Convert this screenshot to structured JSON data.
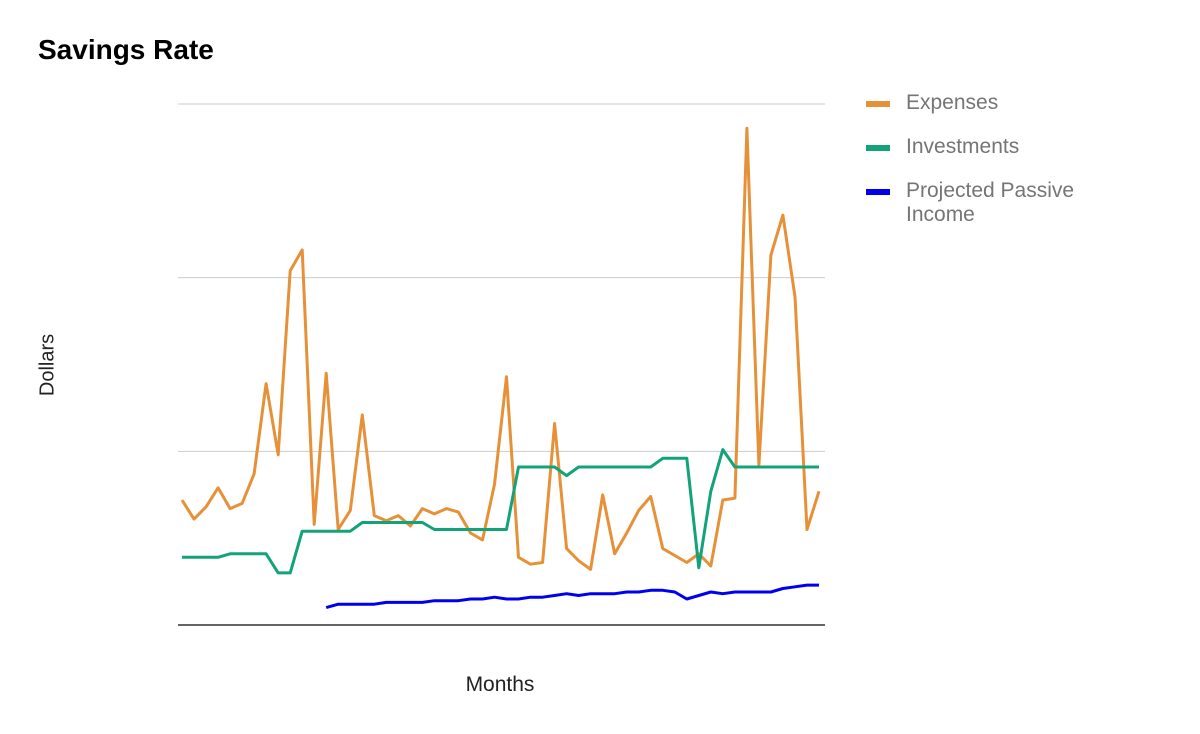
{
  "chart_data": {
    "type": "line",
    "title": "Savings Rate",
    "xlabel": "Months",
    "ylabel": "Dollars",
    "ylim": [
      0,
      3
    ],
    "gridlines": [
      0,
      1,
      2,
      3
    ],
    "grid": true,
    "legend_position": "right",
    "x": [
      1,
      2,
      3,
      4,
      5,
      6,
      7,
      8,
      9,
      10,
      11,
      12,
      13,
      14,
      15,
      16,
      17,
      18,
      19,
      20,
      21,
      22,
      23,
      24,
      25,
      26,
      27,
      28,
      29,
      30,
      31,
      32,
      33,
      34,
      35,
      36,
      37,
      38,
      39,
      40,
      41,
      42,
      43,
      44,
      45,
      46,
      47,
      48,
      49,
      50,
      51,
      52,
      53,
      54
    ],
    "series": [
      {
        "name": "Expenses",
        "color": "#e69138",
        "values": [
          0.72,
          0.61,
          0.68,
          0.79,
          0.67,
          0.7,
          0.87,
          1.39,
          0.98,
          2.04,
          2.16,
          0.58,
          1.45,
          0.55,
          0.66,
          1.21,
          0.63,
          0.6,
          0.63,
          0.57,
          0.67,
          0.64,
          0.67,
          0.65,
          0.53,
          0.49,
          0.81,
          1.43,
          0.39,
          0.35,
          0.36,
          1.16,
          0.44,
          0.37,
          0.32,
          0.75,
          0.41,
          0.53,
          0.66,
          0.74,
          0.44,
          0.4,
          0.36,
          0.41,
          0.34,
          0.72,
          0.73,
          2.86,
          0.92,
          2.13,
          2.36,
          1.89,
          0.55,
          0.77
        ]
      },
      {
        "name": "Investments",
        "color": "#13a37b",
        "values": [
          0.39,
          0.39,
          0.39,
          0.39,
          0.41,
          0.41,
          0.41,
          0.41,
          0.3,
          0.3,
          0.54,
          0.54,
          0.54,
          0.54,
          0.54,
          0.59,
          0.59,
          0.59,
          0.59,
          0.59,
          0.59,
          0.55,
          0.55,
          0.55,
          0.55,
          0.55,
          0.55,
          0.55,
          0.91,
          0.91,
          0.91,
          0.91,
          0.86,
          0.91,
          0.91,
          0.91,
          0.91,
          0.91,
          0.91,
          0.91,
          0.96,
          0.96,
          0.96,
          0.33,
          0.77,
          1.01,
          0.91,
          0.91,
          0.91,
          0.91,
          0.91,
          0.91,
          0.91,
          0.91
        ]
      },
      {
        "name": "Projected Passive Income",
        "color": "#0000ee",
        "values": [
          null,
          null,
          null,
          null,
          null,
          null,
          null,
          null,
          null,
          null,
          null,
          null,
          0.1,
          0.12,
          0.12,
          0.12,
          0.12,
          0.13,
          0.13,
          0.13,
          0.13,
          0.14,
          0.14,
          0.14,
          0.15,
          0.15,
          0.16,
          0.15,
          0.15,
          0.16,
          0.16,
          0.17,
          0.18,
          0.17,
          0.18,
          0.18,
          0.18,
          0.19,
          0.19,
          0.2,
          0.2,
          0.19,
          0.15,
          0.17,
          0.19,
          0.18,
          0.19,
          0.19,
          0.19,
          0.19,
          0.21,
          0.22,
          0.23,
          0.23
        ]
      }
    ]
  }
}
